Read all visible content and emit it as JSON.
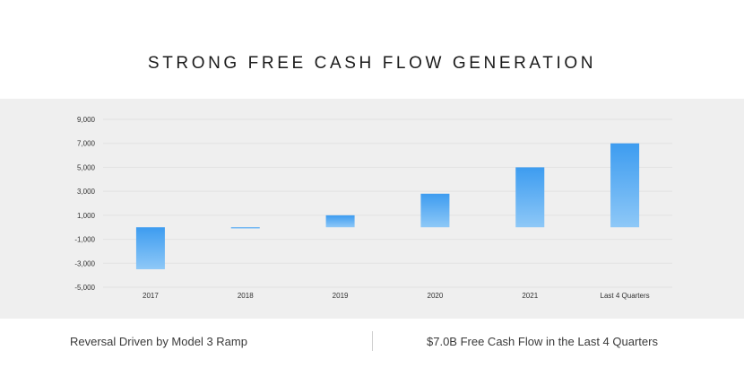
{
  "title": "STRONG FREE CASH FLOW GENERATION",
  "footer": {
    "left_text": "Reversal Driven by Model 3 Ramp",
    "right_text": "$7.0B Free Cash Flow in the Last 4 Quarters"
  },
  "colors": {
    "bar_top": "#3d9cf0",
    "bar_bottom": "#8ec8f7",
    "panel_bg": "#efefef"
  },
  "chart_data": {
    "type": "bar",
    "title": "",
    "xlabel": "",
    "ylabel": "",
    "categories": [
      "2017",
      "2018",
      "2019",
      "2020",
      "2021",
      "Last 4 Quarters"
    ],
    "values": [
      -3500,
      -100,
      1000,
      2800,
      5000,
      7000
    ],
    "yticks": [
      9000,
      7000,
      5000,
      3000,
      1000,
      -1000,
      -3000,
      -5000
    ],
    "ytick_labels": [
      "9,000",
      "7,000",
      "5,000",
      "3,000",
      "1,000",
      "-1,000",
      "-3,000",
      "-5,000"
    ],
    "ylim": [
      -5000,
      9000
    ],
    "grid": true,
    "legend": "none"
  }
}
